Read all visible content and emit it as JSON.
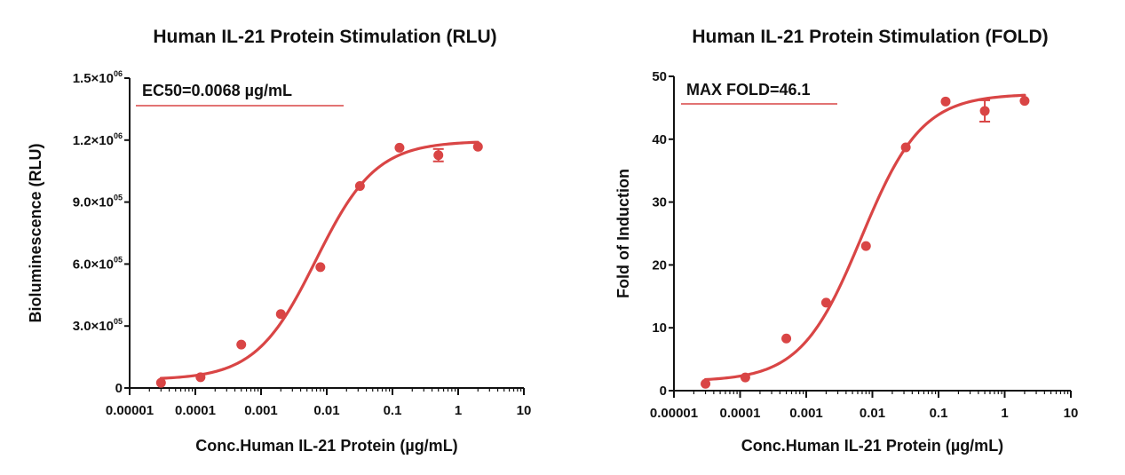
{
  "colors": {
    "series": "#d94545",
    "axis": "#111111"
  },
  "chart_data": [
    {
      "type": "scatter",
      "title": "Human IL-21 Protein Stimulation (RLU)",
      "xlabel": "Conc.Human IL-21 Protein (µg/mL)",
      "ylabel": "Bioluminescence (RLU)",
      "xscale": "log",
      "xlim": [
        1e-05,
        10
      ],
      "ylim": [
        0,
        1500000
      ],
      "x_ticks": [
        1e-05,
        0.0001,
        0.001,
        0.01,
        0.1,
        1,
        10
      ],
      "x_tick_labels": [
        "0.00001",
        "0.0001",
        "0.001",
        "0.01",
        "0.1",
        "1",
        "10"
      ],
      "y_ticks": [
        {
          "value": 0,
          "mantissa": "0",
          "exp": ""
        },
        {
          "value": 300000,
          "mantissa": "3.0×10",
          "exp": "05"
        },
        {
          "value": 600000,
          "mantissa": "6.0×10",
          "exp": "05"
        },
        {
          "value": 900000,
          "mantissa": "9.0×10",
          "exp": "05"
        },
        {
          "value": 1200000,
          "mantissa": "1.2×10",
          "exp": "06"
        },
        {
          "value": 1500000,
          "mantissa": "1.5×10",
          "exp": "06"
        }
      ],
      "points": [
        {
          "x": 3e-05,
          "y": 25000
        },
        {
          "x": 0.00012,
          "y": 52000
        },
        {
          "x": 0.0005,
          "y": 210000
        },
        {
          "x": 0.002,
          "y": 358000
        },
        {
          "x": 0.008,
          "y": 585000
        },
        {
          "x": 0.032,
          "y": 978000
        },
        {
          "x": 0.128,
          "y": 1163000
        },
        {
          "x": 0.5,
          "y": 1127000,
          "err": 30000
        },
        {
          "x": 2,
          "y": 1168000
        }
      ],
      "fit": {
        "bottom": 40000,
        "top": 1195000,
        "ec50": 0.0068,
        "hill": 0.95
      },
      "annotation": "EC50=0.0068 µg/mL",
      "grid": false
    },
    {
      "type": "scatter",
      "title": "Human IL-21 Protein Stimulation (FOLD)",
      "xlabel": "Conc.Human IL-21 Protein (µg/mL)",
      "ylabel": "Fold of Induction",
      "xscale": "log",
      "xlim": [
        1e-05,
        10
      ],
      "ylim": [
        0,
        50
      ],
      "x_ticks": [
        1e-05,
        0.0001,
        0.001,
        0.01,
        0.1,
        1,
        10
      ],
      "x_tick_labels": [
        "0.00001",
        "0.0001",
        "0.001",
        "0.01",
        "0.1",
        "1",
        "10"
      ],
      "y_ticks": [
        {
          "value": 0,
          "mantissa": "0",
          "exp": ""
        },
        {
          "value": 10,
          "mantissa": "10",
          "exp": ""
        },
        {
          "value": 20,
          "mantissa": "20",
          "exp": ""
        },
        {
          "value": 30,
          "mantissa": "30",
          "exp": ""
        },
        {
          "value": 40,
          "mantissa": "40",
          "exp": ""
        },
        {
          "value": 50,
          "mantissa": "50",
          "exp": ""
        }
      ],
      "points": [
        {
          "x": 3e-05,
          "y": 1.1
        },
        {
          "x": 0.00012,
          "y": 2.1
        },
        {
          "x": 0.0005,
          "y": 8.3
        },
        {
          "x": 0.002,
          "y": 14.0
        },
        {
          "x": 0.008,
          "y": 23.0
        },
        {
          "x": 0.032,
          "y": 38.7
        },
        {
          "x": 0.128,
          "y": 46.0
        },
        {
          "x": 0.5,
          "y": 44.5,
          "err": 1.7
        },
        {
          "x": 2,
          "y": 46.1
        }
      ],
      "fit": {
        "bottom": 1.5,
        "top": 47.2,
        "ec50": 0.0068,
        "hill": 0.95
      },
      "annotation": "MAX FOLD=46.1",
      "grid": false
    }
  ]
}
